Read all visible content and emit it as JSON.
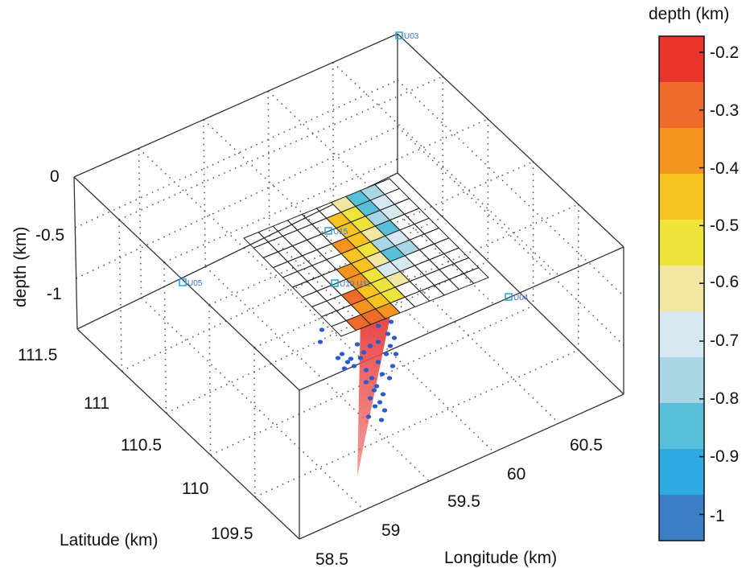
{
  "chart_data": {
    "type": "3d-scatter-surface",
    "colorbar": {
      "title": "depth (km)",
      "ticks": [
        "-0.2",
        "-0.3",
        "-0.4",
        "-0.5",
        "-0.6",
        "-0.7",
        "-0.8",
        "-0.9",
        "-1"
      ],
      "bands": [
        "#e8342a",
        "#f06a2a",
        "#f5931f",
        "#f8c320",
        "#eee43a",
        "#f2e6a0",
        "#d6e8f0",
        "#a9d6e5",
        "#58bfd8",
        "#2fa9e2",
        "#3a7fc4"
      ]
    },
    "axes": {
      "depth": {
        "label": "depth (km)",
        "ticks": [
          "0",
          "-0.5",
          "-1"
        ]
      },
      "latitude": {
        "label": "Latitude (km)",
        "ticks": [
          "111.5",
          "111",
          "110.5",
          "110",
          "109.5"
        ]
      },
      "longitude": {
        "label": "Longitude (km)",
        "ticks": [
          "58.5",
          "59",
          "59.5",
          "60",
          "60.5"
        ]
      }
    },
    "stations": [
      {
        "label": "U03"
      },
      {
        "label": "U05"
      },
      {
        "label": "U04"
      },
      {
        "label": "U15"
      },
      {
        "label": "U10 U11"
      }
    ],
    "grid_surface": {
      "rows": 10,
      "cols": 10,
      "depths": [
        [
          null,
          null,
          null,
          null,
          null,
          null,
          -0.6,
          -0.85,
          -0.75,
          null
        ],
        [
          null,
          null,
          null,
          null,
          null,
          -0.45,
          -0.55,
          -0.85,
          -0.7,
          null
        ],
        [
          null,
          null,
          null,
          null,
          null,
          -0.4,
          -0.5,
          -0.8,
          -0.65,
          null
        ],
        [
          null,
          null,
          null,
          null,
          -0.35,
          -0.45,
          -0.6,
          -0.9,
          null,
          null
        ],
        [
          null,
          null,
          null,
          null,
          -0.4,
          -0.55,
          -0.75,
          -0.7,
          null,
          null
        ],
        [
          null,
          null,
          null,
          -0.3,
          -0.45,
          -0.6,
          -0.85,
          -0.75,
          null,
          null
        ],
        [
          null,
          null,
          null,
          -0.35,
          -0.5,
          -0.65,
          -0.7,
          null,
          null,
          null
        ],
        [
          null,
          null,
          -0.25,
          -0.4,
          -0.55,
          -0.6,
          null,
          null,
          null,
          null
        ],
        [
          null,
          null,
          -0.3,
          -0.45,
          -0.5,
          null,
          null,
          null,
          null,
          null
        ],
        [
          null,
          -0.2,
          -0.25,
          -0.35,
          null,
          null,
          null,
          null,
          null,
          null
        ]
      ]
    },
    "events": [
      [
        400,
        410
      ],
      [
        398,
        425
      ],
      [
        425,
        440
      ],
      [
        432,
        450
      ],
      [
        440,
        455
      ],
      [
        448,
        445
      ],
      [
        455,
        460
      ],
      [
        462,
        470
      ],
      [
        470,
        450
      ],
      [
        480,
        440
      ],
      [
        485,
        430
      ],
      [
        475,
        465
      ],
      [
        468,
        480
      ],
      [
        460,
        495
      ],
      [
        472,
        500
      ],
      [
        478,
        510
      ],
      [
        465,
        485
      ],
      [
        455,
        475
      ],
      [
        490,
        420
      ],
      [
        482,
        415
      ],
      [
        470,
        425
      ],
      [
        460,
        430
      ],
      [
        452,
        438
      ],
      [
        444,
        428
      ],
      [
        436,
        446
      ],
      [
        428,
        458
      ],
      [
        420,
        445
      ],
      [
        488,
        455
      ],
      [
        476,
        490
      ],
      [
        466,
        505
      ],
      [
        458,
        518
      ],
      [
        474,
        522
      ],
      [
        484,
        470
      ],
      [
        492,
        440
      ],
      [
        486,
        400
      ],
      [
        478,
        395
      ],
      [
        470,
        405
      ]
    ]
  }
}
